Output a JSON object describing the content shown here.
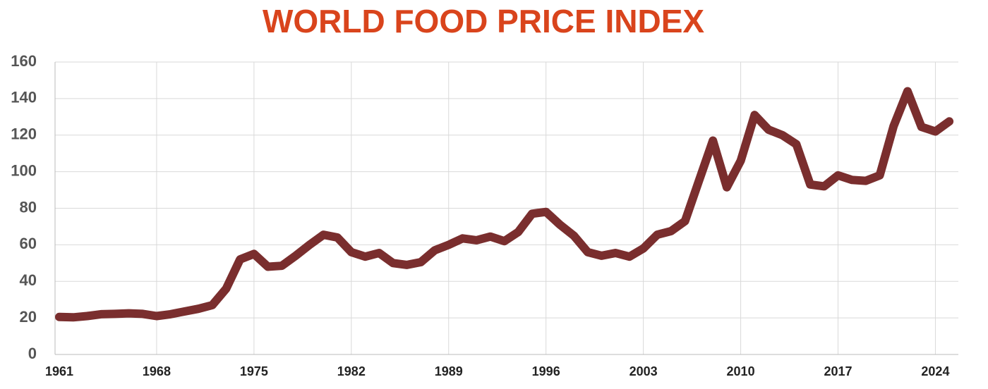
{
  "chart_data": {
    "type": "line",
    "title": "WORLD FOOD PRICE INDEX",
    "x": [
      1961,
      1962,
      1963,
      1964,
      1965,
      1966,
      1967,
      1968,
      1969,
      1970,
      1971,
      1972,
      1973,
      1974,
      1975,
      1976,
      1977,
      1978,
      1979,
      1980,
      1981,
      1982,
      1983,
      1984,
      1985,
      1986,
      1987,
      1988,
      1989,
      1990,
      1991,
      1992,
      1993,
      1994,
      1995,
      1996,
      1997,
      1998,
      1999,
      2000,
      2001,
      2002,
      2003,
      2004,
      2005,
      2006,
      2007,
      2008,
      2009,
      2010,
      2011,
      2012,
      2013,
      2014,
      2015,
      2016,
      2017,
      2018,
      2019,
      2020,
      2021,
      2022,
      2023,
      2024,
      2025
    ],
    "series": [
      {
        "name": "World Food Price Index",
        "color": "#7a2e2e",
        "values": [
          20.5,
          20.3,
          21,
          22,
          22.2,
          22.5,
          22.2,
          21,
          22,
          23.5,
          25,
          27,
          36,
          52,
          55,
          48,
          48.5,
          54,
          60,
          65.5,
          64,
          56,
          53.5,
          55.5,
          50,
          49,
          50.5,
          57,
          60,
          63.5,
          62.5,
          64.5,
          62,
          67,
          77,
          78,
          71,
          65,
          56,
          54,
          55.5,
          53.5,
          58,
          65.5,
          67.5,
          73,
          95,
          117,
          91.5,
          106,
          131,
          123,
          120,
          115,
          93,
          92,
          98,
          95.5,
          95,
          98,
          125,
          144,
          124.5,
          122,
          127.5
        ]
      }
    ],
    "xlim": [
      1961,
      2025.5
    ],
    "ylim": [
      0,
      160
    ],
    "xticks": [
      1961,
      1968,
      1975,
      1982,
      1989,
      1996,
      2003,
      2010,
      2017,
      2024
    ],
    "yticks": [
      0,
      20,
      40,
      60,
      80,
      100,
      120,
      140,
      160
    ],
    "grid": true
  }
}
